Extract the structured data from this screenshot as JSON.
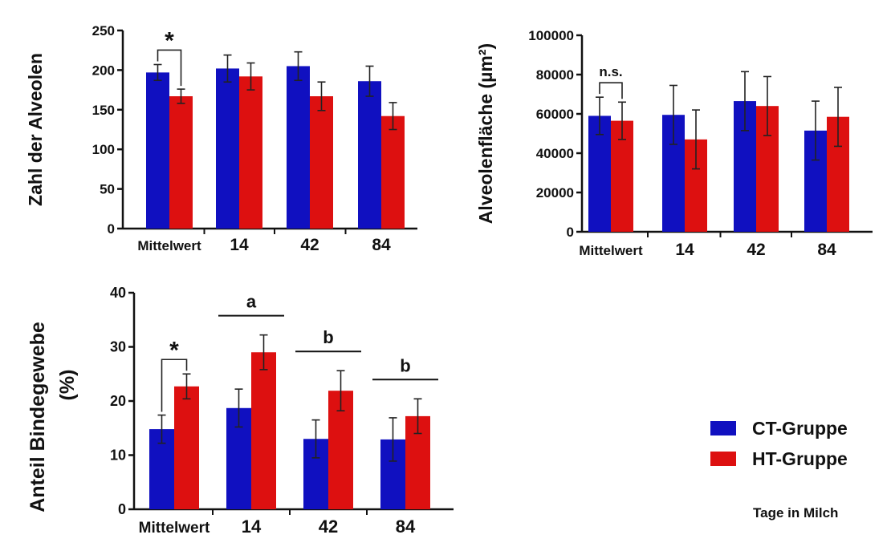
{
  "colors": {
    "ct": "#1010c0",
    "ht": "#dd1010",
    "axis": "#111111"
  },
  "legend": {
    "items": [
      {
        "label": "CT-Gruppe",
        "color": "#1010c0"
      },
      {
        "label": "HT-Gruppe",
        "color": "#dd1010"
      }
    ]
  },
  "footnote": "Tage in Milch",
  "chart_data": [
    {
      "type": "bar",
      "ylabel": "Zahl der Alveolen",
      "categories": [
        "Mittelwert",
        "14",
        "42",
        "84"
      ],
      "ylim": [
        0,
        250
      ],
      "yticks": [
        0,
        50,
        100,
        150,
        200,
        250
      ],
      "series": [
        {
          "name": "CT-Gruppe",
          "values": [
            197,
            202,
            205,
            186
          ],
          "errors": [
            10,
            17,
            18,
            19
          ]
        },
        {
          "name": "HT-Gruppe",
          "values": [
            167,
            192,
            167,
            142
          ],
          "errors": [
            9,
            17,
            18,
            17
          ]
        }
      ],
      "annotations": [
        {
          "type": "bracket",
          "category": 0,
          "label": "*"
        }
      ]
    },
    {
      "type": "bar",
      "ylabel": "Alveolenfläche (µm²)",
      "categories": [
        "Mittelwert",
        "14",
        "42",
        "84"
      ],
      "ylim": [
        0,
        100000
      ],
      "yticks": [
        0,
        20000,
        40000,
        60000,
        80000,
        100000
      ],
      "series": [
        {
          "name": "CT-Gruppe",
          "values": [
            59000,
            59500,
            66500,
            51500
          ],
          "errors": [
            9500,
            15000,
            15000,
            15000
          ]
        },
        {
          "name": "HT-Gruppe",
          "values": [
            56500,
            47000,
            64000,
            58500
          ],
          "errors": [
            9500,
            15000,
            15000,
            15000
          ]
        }
      ],
      "annotations": [
        {
          "type": "bracket",
          "category": 0,
          "label": "n.s."
        }
      ]
    },
    {
      "type": "bar",
      "ylabel": "Anteil Bindegewebe (%)",
      "categories": [
        "Mittelwert",
        "14",
        "42",
        "84"
      ],
      "ylim": [
        0,
        40
      ],
      "yticks": [
        0,
        10,
        20,
        30,
        40
      ],
      "series": [
        {
          "name": "CT-Gruppe",
          "values": [
            14.8,
            18.7,
            13,
            12.9
          ],
          "errors": [
            2.6,
            3.5,
            3.5,
            4.0
          ]
        },
        {
          "name": "HT-Gruppe",
          "values": [
            22.7,
            29,
            21.9,
            17.2
          ],
          "errors": [
            2.3,
            3.2,
            3.7,
            3.2
          ]
        }
      ],
      "annotations": [
        {
          "type": "bracket",
          "category": 0,
          "label": "*"
        },
        {
          "type": "line",
          "category": 1,
          "label": "a"
        },
        {
          "type": "line",
          "category": 2,
          "label": "b"
        },
        {
          "type": "line",
          "category": 3,
          "label": "b"
        }
      ]
    }
  ]
}
